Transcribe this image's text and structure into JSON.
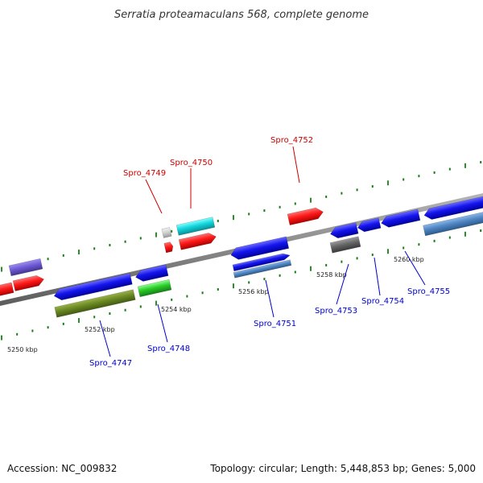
{
  "title": "Serratia proteamaculans 568, complete genome",
  "footer": {
    "accession": "Accession: NC_009832",
    "summary": "Topology: circular; Length: 5,448,853 bp; Genes: 5,000"
  },
  "colors": {
    "backbone": "#8a8a8a",
    "tick_major": "#2e8b2e",
    "tick_minor": "#1e7a1e",
    "label_forward": "#cc0000",
    "label_reverse": "#0000cc"
  },
  "scale_labels": [
    {
      "id": "tick-5250",
      "text": "5250 kbp"
    },
    {
      "id": "tick-5252",
      "text": "5252 kbp"
    },
    {
      "id": "tick-5254",
      "text": "5254 kbp"
    },
    {
      "id": "tick-5256",
      "text": "5256 kbp"
    },
    {
      "id": "tick-5258",
      "text": "5258 kbp"
    },
    {
      "id": "tick-5260",
      "text": "5260 kbp"
    }
  ],
  "gene_labels": {
    "forward": [
      {
        "id": "spro-4749",
        "text": "Spro_4749"
      },
      {
        "id": "spro-4750",
        "text": "Spro_4750"
      },
      {
        "id": "spro-4752",
        "text": "Spro_4752"
      }
    ],
    "reverse": [
      {
        "id": "spro-4747",
        "text": "Spro_4747"
      },
      {
        "id": "spro-4748",
        "text": "Spro_4748"
      },
      {
        "id": "spro-4751",
        "text": "Spro_4751"
      },
      {
        "id": "spro-4753",
        "text": "Spro_4753"
      },
      {
        "id": "spro-4754",
        "text": "Spro_4754"
      },
      {
        "id": "spro-4755",
        "text": "Spro_4755"
      }
    ]
  }
}
